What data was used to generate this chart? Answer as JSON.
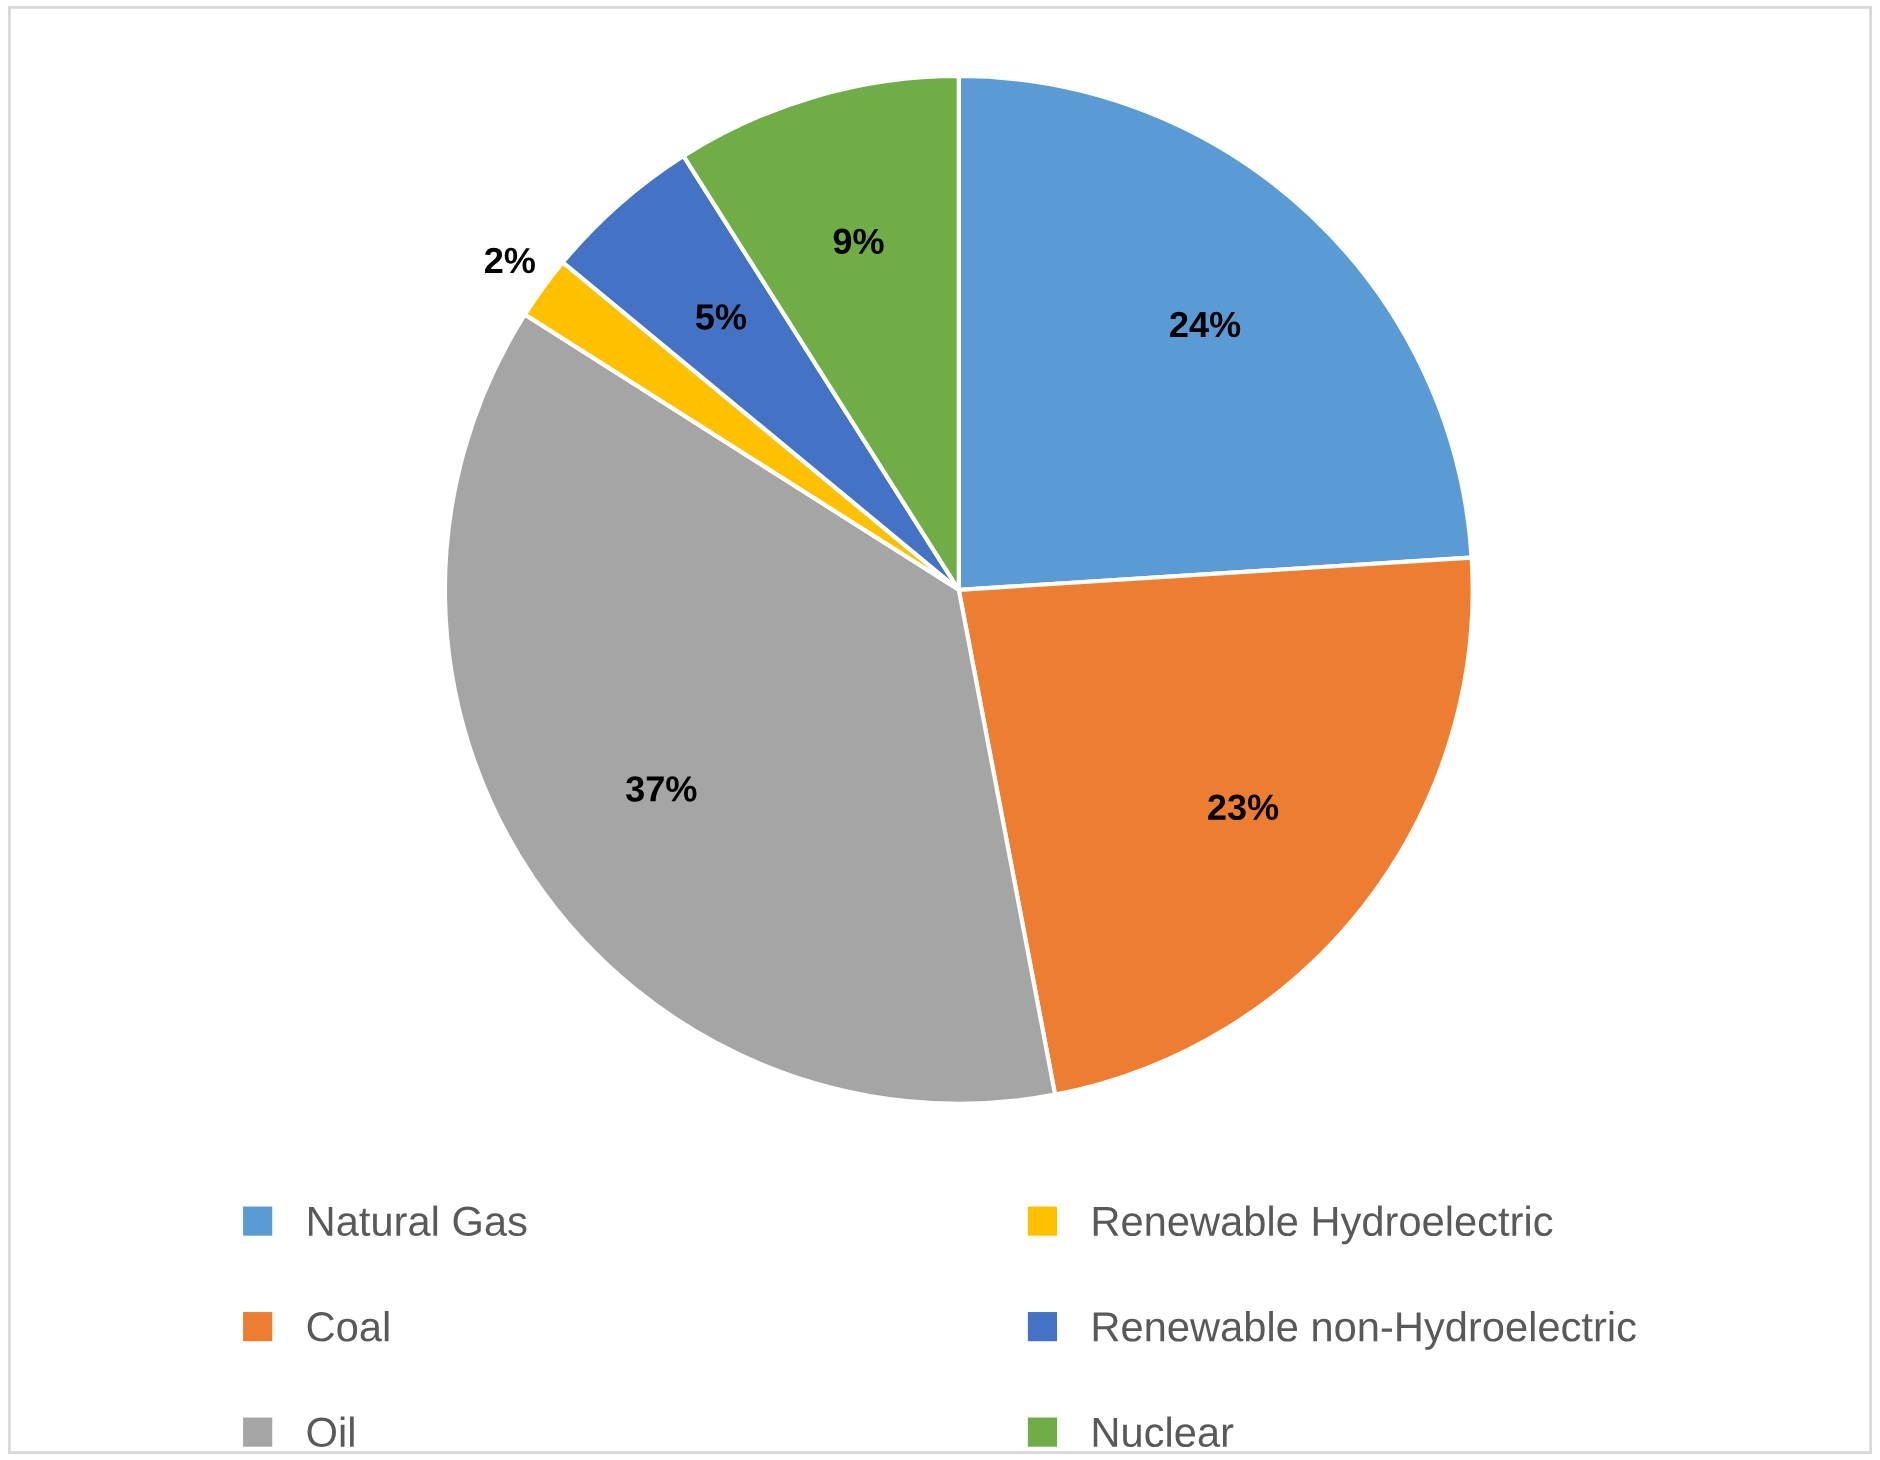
{
  "chart_data": {
    "type": "pie",
    "categories": [
      "Natural Gas",
      "Coal",
      "Oil",
      "Renewable Hydroelectric",
      "Renewable non-Hydroelectric",
      "Nuclear"
    ],
    "values": [
      24,
      23,
      37,
      2,
      5,
      9
    ],
    "value_labels": [
      "24%",
      "23%",
      "37%",
      "2%",
      "5%",
      "9%"
    ],
    "colors": [
      "#5b9bd5",
      "#ed7d31",
      "#a5a5a5",
      "#ffc000",
      "#4472c4",
      "#70ad47"
    ],
    "legend": "bottom"
  }
}
